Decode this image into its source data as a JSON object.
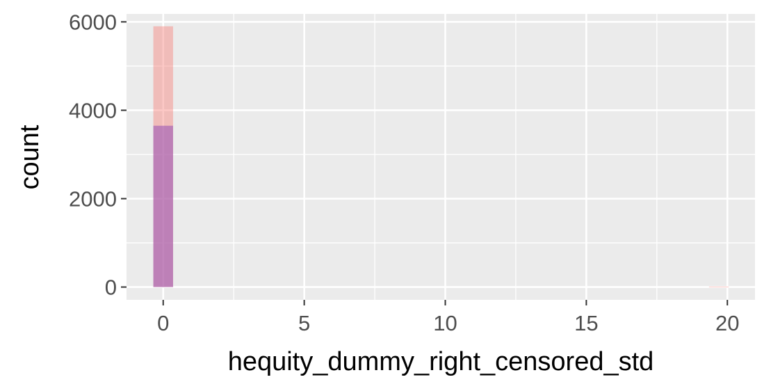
{
  "chart_data": {
    "type": "bar",
    "subtype": "histogram",
    "title": "",
    "xlabel": "hequity_dummy_right_censored_std",
    "ylabel": "count",
    "xlim": [
      -1.3,
      20.98
    ],
    "ylim": [
      -290,
      6180
    ],
    "x_ticks": [
      0,
      5,
      10,
      15,
      20
    ],
    "x_tick_labels": [
      "0",
      "5",
      "10",
      "15",
      "20"
    ],
    "y_ticks": [
      0,
      2000,
      4000,
      6000
    ],
    "y_tick_labels": [
      "0",
      "2000",
      "4000",
      "6000"
    ],
    "x_minor_ticks": [
      2.5,
      7.5,
      12.5,
      17.5
    ],
    "y_minor_ticks": [
      1000,
      3000,
      5000
    ],
    "grid": true,
    "legend": "none",
    "panel_background": "#ebebeb",
    "series": [
      {
        "color": "#f8766d",
        "opacity": 0.4,
        "bins": [
          {
            "x0": -0.35,
            "x1": 0.35,
            "count": 5900
          },
          {
            "x0": 19.35,
            "x1": 20.05,
            "count": 10
          }
        ]
      },
      {
        "color": "#9b59b6",
        "opacity": 0.6,
        "bins": [
          {
            "x0": -0.35,
            "x1": 0.35,
            "count": 3650
          }
        ]
      }
    ]
  }
}
